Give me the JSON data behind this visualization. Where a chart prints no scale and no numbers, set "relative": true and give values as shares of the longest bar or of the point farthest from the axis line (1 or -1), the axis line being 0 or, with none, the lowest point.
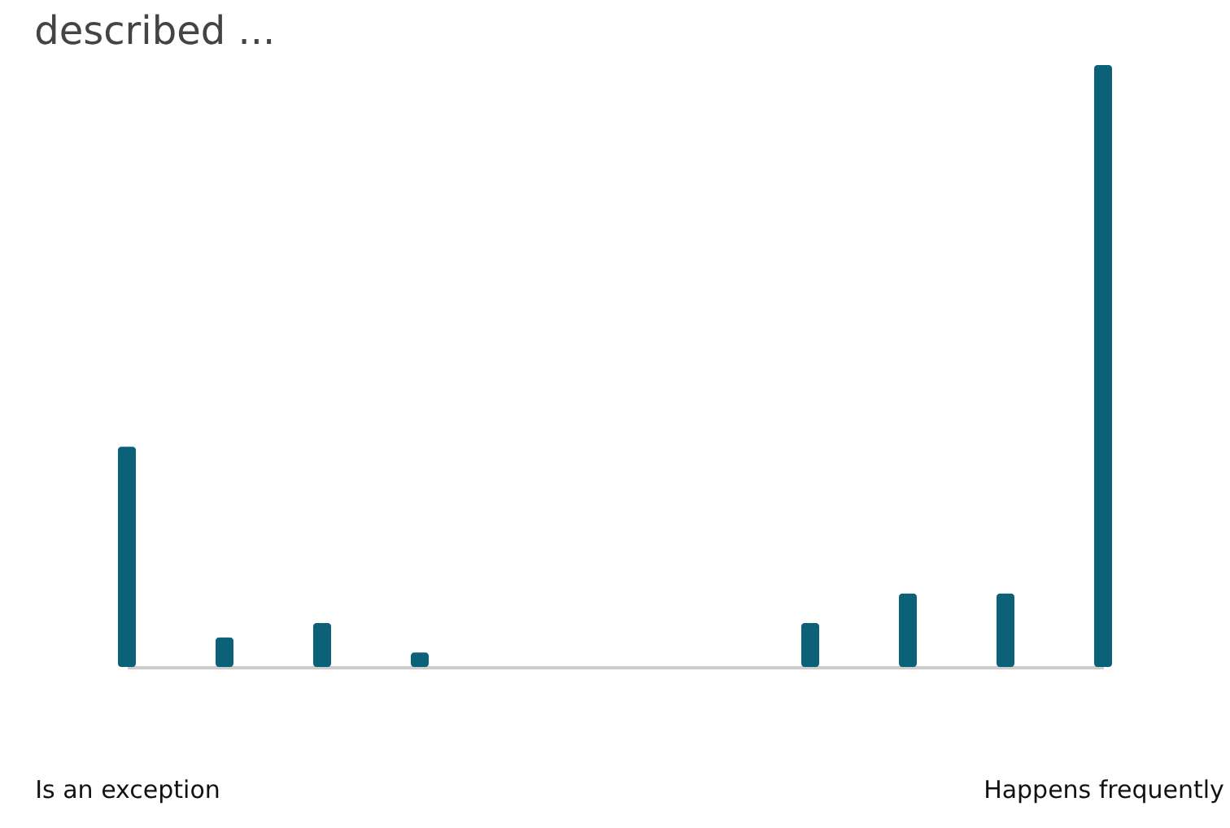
{
  "chart_data": {
    "type": "bar",
    "title": "described ...",
    "categories": [
      "Is an exception",
      null,
      null,
      null,
      null,
      null,
      null,
      null,
      null,
      null,
      "Happens frequently"
    ],
    "relative": true,
    "series": [
      {
        "color": "#0b6278",
        "values": [
          0.366,
          0.049,
          0.073,
          0.024,
          0,
          0,
          0,
          0.073,
          0.122,
          0.122,
          1
        ]
      }
    ],
    "grid": false,
    "legend": false
  }
}
